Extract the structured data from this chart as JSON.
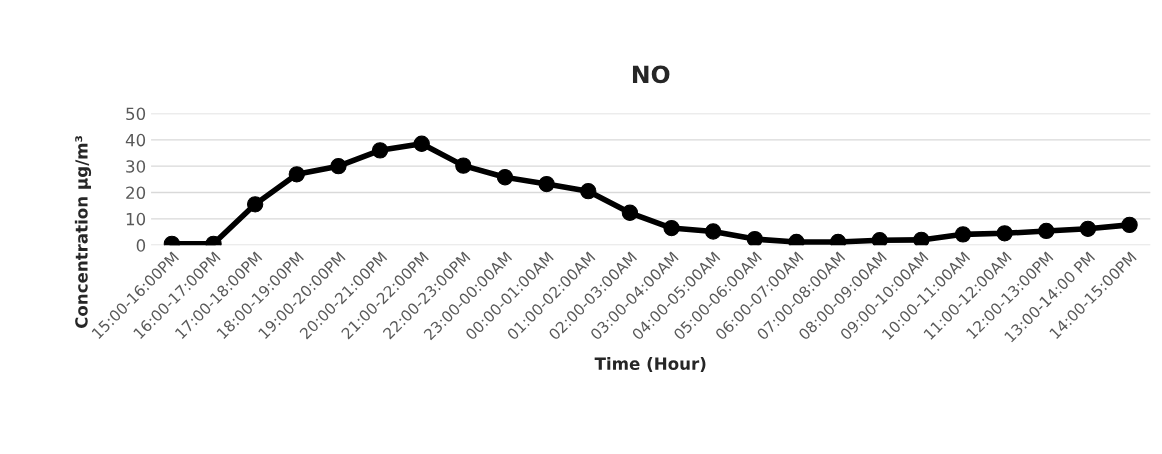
{
  "chart_data": {
    "type": "line",
    "title": "NO",
    "xlabel": "Time (Hour)",
    "ylabel": "Concentration µg/m³",
    "categories": [
      "15:00-16:00PM",
      "16:00-17:00PM",
      "17:00-18:00PM",
      "18:00-19:00PM",
      "19:00-20:00PM",
      "20:00-21:00PM",
      "21:00-22:00PM",
      "22:00-23:00PM",
      "23:00-00:00AM",
      "00:00-01:00AM",
      "01:00-02:00AM",
      "02:00-03:00AM",
      "03:00-04:00AM",
      "04:00-05:00AM",
      "05:00-06:00AM",
      "06:00-07:00AM",
      "07:00-08:00AM",
      "08:00-09:00AM",
      "09:00-10:00AM",
      "10:00-11:00AM",
      "11:00-12:00AM",
      "12:00-13:00PM",
      "13:00-14:00 PM",
      "14:00-15:00PM"
    ],
    "series": [
      {
        "color": "#000000",
        "values": [
          0.5,
          0.5,
          15.5,
          26.9,
          30,
          36,
          38.5,
          30.2,
          25.8,
          23.2,
          20.5,
          12.3,
          6.5,
          5.2,
          2.3,
          1.2,
          1.2,
          1.9,
          2,
          4.1,
          4.5,
          5.4,
          6.2,
          7.7
        ]
      }
    ],
    "ylim": [
      0,
      50
    ],
    "yticks": [
      0,
      10,
      20,
      30,
      40,
      50
    ],
    "grid": "y",
    "marker": "circle",
    "line_style": "solid"
  }
}
